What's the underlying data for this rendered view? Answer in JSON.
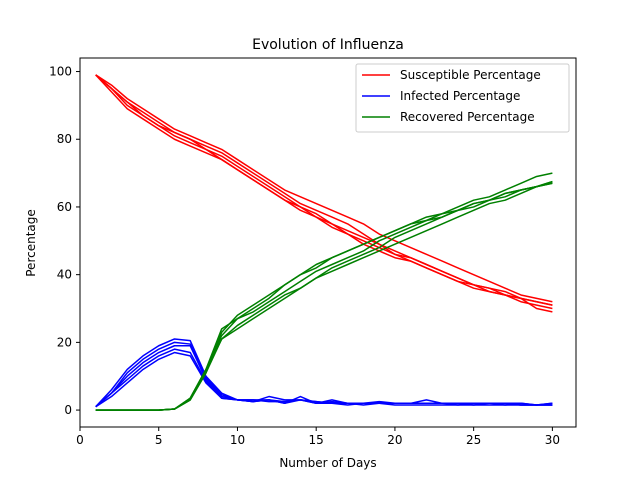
{
  "chart_data": {
    "type": "line",
    "title": "Evolution of Influenza",
    "xlabel": "Number of Days",
    "ylabel": "Percentage",
    "xlim": [
      0,
      31.5
    ],
    "ylim": [
      -5,
      104
    ],
    "xticks": [
      0,
      5,
      10,
      15,
      20,
      25,
      30
    ],
    "yticks": [
      0,
      20,
      40,
      60,
      80,
      100
    ],
    "grid": false,
    "legend_position": "top-right",
    "x": [
      1,
      2,
      3,
      4,
      5,
      6,
      7,
      8,
      9,
      10,
      11,
      12,
      13,
      14,
      15,
      16,
      17,
      18,
      19,
      20,
      21,
      22,
      23,
      24,
      25,
      26,
      27,
      28,
      29,
      30
    ],
    "series": [
      {
        "name": "Susceptible Percentage",
        "color": "#ff0000",
        "runs": [
          [
            99,
            95,
            91,
            88,
            85,
            82,
            80,
            78,
            76,
            73,
            70,
            67,
            64,
            61,
            59,
            57,
            55,
            52,
            49,
            46,
            44,
            42,
            40,
            38,
            36,
            35,
            34,
            33,
            32,
            31
          ],
          [
            99,
            95,
            90,
            87,
            84,
            81,
            79,
            77,
            74,
            71,
            68,
            65,
            62,
            59,
            57,
            54,
            52,
            50,
            48,
            46,
            45,
            43,
            41,
            39,
            37,
            35,
            34,
            32,
            31,
            30
          ],
          [
            99,
            96,
            92,
            89,
            86,
            83,
            81,
            79,
            77,
            74,
            71,
            68,
            65,
            63,
            61,
            59,
            57,
            55,
            52,
            50,
            48,
            46,
            44,
            42,
            40,
            38,
            36,
            34,
            33,
            32
          ],
          [
            99,
            94,
            89,
            86,
            83,
            80,
            78,
            76,
            74,
            71,
            68,
            65,
            62,
            60,
            57,
            55,
            52,
            49,
            47,
            45,
            44,
            42,
            40,
            38,
            37,
            36,
            35,
            33,
            30,
            29
          ],
          [
            99,
            95,
            91,
            87,
            84,
            82,
            80,
            77,
            75,
            72,
            69,
            66,
            63,
            60,
            58,
            55,
            53,
            51,
            49,
            47,
            45,
            43,
            41,
            39,
            37,
            36,
            34,
            33,
            32,
            31
          ]
        ]
      },
      {
        "name": "Infected Percentage",
        "color": "#0000ff",
        "runs": [
          [
            1,
            6,
            12,
            16,
            19,
            21,
            20.5,
            10,
            5,
            3,
            2.5,
            4,
            3,
            3,
            2,
            3,
            2,
            2,
            2.5,
            2,
            2,
            3,
            2,
            2,
            2,
            2,
            1.5,
            2,
            1.5,
            2
          ],
          [
            1,
            5,
            10,
            14,
            17,
            19,
            19,
            9,
            4,
            3,
            3,
            2.5,
            2.5,
            3,
            2.5,
            2,
            2,
            2,
            2,
            2,
            2,
            2,
            2,
            1.5,
            2,
            2,
            2,
            2,
            1.5,
            2
          ],
          [
            1,
            4,
            8,
            12,
            15,
            17,
            16,
            8,
            3.5,
            3,
            2.5,
            3,
            2,
            3,
            2,
            2,
            1.5,
            2,
            2,
            1.5,
            1.5,
            1.5,
            1.5,
            1.5,
            1.5,
            1.5,
            1.5,
            1.5,
            1.5,
            1.5
          ],
          [
            1,
            5,
            9,
            13,
            16,
            18,
            17,
            8.5,
            3.5,
            3,
            2.5,
            3,
            2,
            4,
            2,
            2.5,
            2,
            2,
            2,
            2,
            2,
            2,
            2,
            2,
            2,
            2,
            2,
            1.5,
            1.5,
            1.5
          ],
          [
            1,
            5,
            11,
            15,
            18,
            20,
            19.5,
            9.5,
            4.5,
            3,
            3,
            3,
            2.5,
            3,
            2.5,
            2,
            2,
            1.5,
            2,
            2,
            2,
            2,
            2,
            2,
            1.5,
            2,
            2,
            1.5,
            1.5,
            1.5
          ]
        ]
      },
      {
        "name": "Recovered Percentage",
        "color": "#008000",
        "runs": [
          [
            0,
            0,
            0,
            0,
            0,
            0.3,
            3.5,
            12,
            21,
            25,
            28,
            31,
            34,
            36,
            39,
            42,
            44,
            46,
            48,
            51,
            53,
            55,
            57,
            59,
            61,
            62,
            64,
            65,
            66,
            67.5
          ],
          [
            0,
            0,
            0,
            0,
            0,
            0.3,
            3.5,
            12,
            22,
            27,
            30,
            33,
            37,
            40,
            42,
            45,
            47,
            49,
            51,
            53,
            55,
            56,
            58,
            59,
            61,
            62,
            64,
            65,
            66,
            67
          ],
          [
            0,
            0,
            0,
            0,
            0,
            0.3,
            3,
            11,
            23,
            28,
            31,
            34,
            37,
            40,
            43,
            45,
            47,
            49,
            51,
            53,
            55,
            57,
            58,
            60,
            62,
            63,
            65,
            67,
            69,
            70
          ],
          [
            0,
            0,
            0,
            0,
            0,
            0.3,
            3.5,
            12,
            24,
            27,
            29,
            32,
            35,
            38,
            41,
            43,
            45,
            47,
            50,
            52,
            54,
            56,
            57,
            59,
            60,
            62,
            63,
            65,
            66,
            67.5
          ],
          [
            0,
            0,
            0,
            0,
            0,
            0.3,
            3,
            11,
            21,
            24,
            27,
            30,
            33,
            36,
            39,
            41,
            43,
            45,
            47,
            49,
            51,
            53,
            55,
            57,
            59,
            61,
            62,
            64,
            66,
            67
          ]
        ]
      }
    ]
  }
}
